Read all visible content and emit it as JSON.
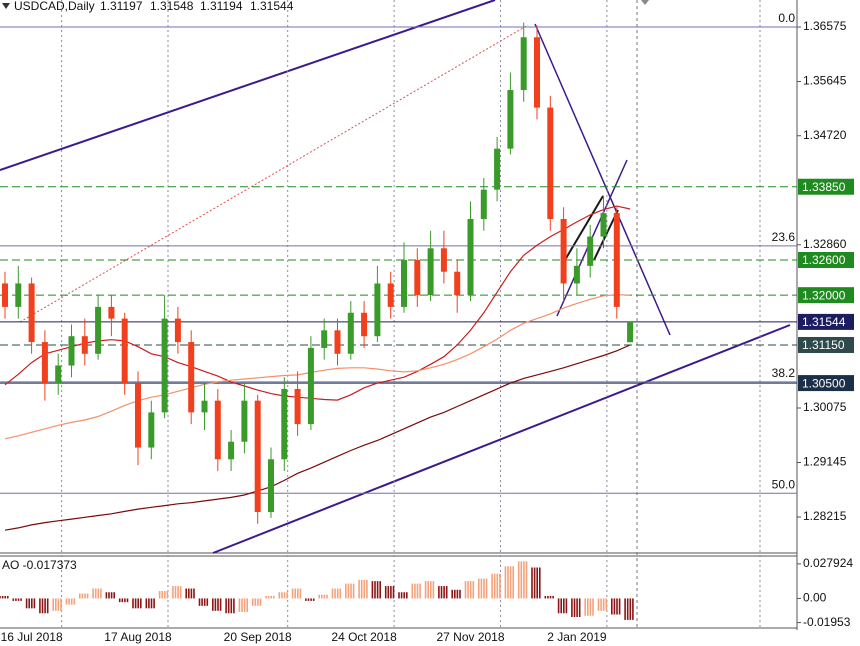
{
  "chart_data": {
    "type": "candlestick",
    "title": "USDCAD,Daily",
    "categories": [
      null,
      null,
      "16 Jul 2018",
      null,
      null,
      null,
      null,
      null,
      null,
      null,
      "17 Aug 2018",
      null,
      null,
      null,
      null,
      null,
      null,
      null,
      null,
      "20 Sep 2018",
      null,
      null,
      null,
      null,
      null,
      null,
      null,
      "24 Oct 2018",
      null,
      null,
      null,
      null,
      null,
      null,
      null,
      "27 Nov 2018",
      null,
      null,
      null,
      null,
      null,
      null,
      null,
      "2 Jan 2019",
      null,
      null,
      null,
      null
    ],
    "candles": [
      [
        1.322,
        1.324,
        1.316,
        1.318
      ],
      [
        1.318,
        1.325,
        1.316,
        1.322
      ],
      [
        1.322,
        1.323,
        1.31,
        1.312
      ],
      [
        1.312,
        1.314,
        1.302,
        1.305
      ],
      [
        1.305,
        1.31,
        1.303,
        1.308
      ],
      [
        1.308,
        1.315,
        1.306,
        1.313
      ],
      [
        1.313,
        1.316,
        1.308,
        1.31
      ],
      [
        1.31,
        1.32,
        1.309,
        1.318
      ],
      [
        1.318,
        1.32,
        1.313,
        1.316
      ],
      [
        1.316,
        1.317,
        1.303,
        1.305
      ],
      [
        1.305,
        1.307,
        1.291,
        1.294
      ],
      [
        1.294,
        1.302,
        1.292,
        1.3
      ],
      [
        1.3,
        1.32,
        1.299,
        1.316
      ],
      [
        1.316,
        1.318,
        1.31,
        1.312
      ],
      [
        1.312,
        1.314,
        1.298,
        1.3
      ],
      [
        1.3,
        1.305,
        1.297,
        1.302
      ],
      [
        1.302,
        1.304,
        1.29,
        1.292
      ],
      [
        1.292,
        1.297,
        1.29,
        1.295
      ],
      [
        1.295,
        1.305,
        1.293,
        1.302
      ],
      [
        1.302,
        1.303,
        1.281,
        1.283
      ],
      [
        1.283,
        1.294,
        1.282,
        1.292
      ],
      [
        1.292,
        1.306,
        1.29,
        1.304
      ],
      [
        1.304,
        1.307,
        1.296,
        1.298
      ],
      [
        1.298,
        1.313,
        1.297,
        1.311
      ],
      [
        1.311,
        1.316,
        1.309,
        1.314
      ],
      [
        1.314,
        1.316,
        1.308,
        1.31
      ],
      [
        1.31,
        1.319,
        1.309,
        1.317
      ],
      [
        1.317,
        1.319,
        1.311,
        1.313
      ],
      [
        1.313,
        1.325,
        1.312,
        1.322
      ],
      [
        1.322,
        1.324,
        1.316,
        1.318
      ],
      [
        1.318,
        1.329,
        1.317,
        1.326
      ],
      [
        1.326,
        1.328,
        1.318,
        1.32
      ],
      [
        1.32,
        1.331,
        1.319,
        1.328
      ],
      [
        1.328,
        1.331,
        1.322,
        1.324
      ],
      [
        1.324,
        1.326,
        1.317,
        1.32
      ],
      [
        1.32,
        1.336,
        1.319,
        1.333
      ],
      [
        1.333,
        1.34,
        1.331,
        1.338
      ],
      [
        1.338,
        1.347,
        1.336,
        1.345
      ],
      [
        1.345,
        1.358,
        1.344,
        1.355
      ],
      [
        1.355,
        1.3665,
        1.353,
        1.364
      ],
      [
        1.364,
        1.366,
        1.35,
        1.352
      ],
      [
        1.352,
        1.354,
        1.331,
        1.333
      ],
      [
        1.333,
        1.335,
        1.319,
        1.322
      ],
      [
        1.322,
        1.328,
        1.32,
        1.325
      ],
      [
        1.325,
        1.332,
        1.323,
        1.33
      ],
      [
        1.33,
        1.337,
        1.328,
        1.334
      ],
      [
        1.334,
        1.335,
        1.316,
        1.318
      ],
      [
        1.31197,
        1.31548,
        1.31194,
        1.31544
      ]
    ],
    "up_color": "#3a9a2a",
    "down_color": "#f0401e",
    "ylim": [
      1.27601,
      1.37036
    ],
    "yticks": [
      1.36575,
      1.35645,
      {
        "value": 1.3472,
        "label": "1.34720"
      },
      {
        "value": 1.3286,
        "label": "1.32860"
      },
      1.30075,
      1.29145,
      1.28215
    ],
    "series": [
      {
        "color": "#c81e1e",
        "values": [
          1.3047,
          1.3065,
          1.3085,
          1.31,
          1.3106,
          1.3112,
          1.3118,
          1.3122,
          1.3124,
          1.3122,
          1.3112,
          1.31,
          1.3095,
          1.3085,
          1.3078,
          1.307,
          1.3062,
          1.3052,
          1.3045,
          1.3038,
          1.3032,
          1.3028,
          1.3026,
          1.3024,
          1.3022,
          1.3021,
          1.303,
          1.3042,
          1.305,
          1.3055,
          1.306,
          1.307,
          1.3082,
          1.3095,
          1.3115,
          1.314,
          1.317,
          1.3205,
          1.324,
          1.3268,
          1.3285,
          1.33,
          1.3312,
          1.3325,
          1.3337,
          1.3346,
          1.3352,
          1.3347
        ]
      },
      {
        "color": "#f4906a",
        "values": [
          1.2955,
          1.296,
          1.2966,
          1.2972,
          1.2978,
          1.2983,
          1.2987,
          1.2993,
          1.3002,
          1.3012,
          1.302,
          1.3026,
          1.303,
          1.3036,
          1.3042,
          1.3048,
          1.3052,
          1.3055,
          1.3057,
          1.3059,
          1.3061,
          1.3063,
          1.3064,
          1.3068,
          1.3072,
          1.3075,
          1.3076,
          1.3076,
          1.3074,
          1.3071,
          1.3069,
          1.3071,
          1.3076,
          1.3082,
          1.309,
          1.31,
          1.3112,
          1.3125,
          1.314,
          1.3152,
          1.316,
          1.3168,
          1.3178,
          1.3186,
          1.3193,
          1.3199,
          1.3201,
          1.32
        ]
      },
      {
        "color": "#7a0a0a",
        "values": [
          1.2799,
          1.2803,
          1.2808,
          1.2812,
          1.2815,
          1.2818,
          1.2821,
          1.2824,
          1.2827,
          1.2831,
          1.2835,
          1.2838,
          1.2841,
          1.2844,
          1.2846,
          1.2849,
          1.2852,
          1.2855,
          1.2859,
          1.2866,
          1.2873,
          1.2884,
          1.2896,
          1.2905,
          1.2915,
          1.2925,
          1.2935,
          1.2944,
          1.2952,
          1.2962,
          1.2972,
          1.2982,
          1.2992,
          1.3,
          1.301,
          1.302,
          1.303,
          1.304,
          1.305,
          1.3058,
          1.3064,
          1.307,
          1.3076,
          1.3083,
          1.309,
          1.3097,
          1.3105,
          1.3115
        ]
      }
    ],
    "levels": [
      {
        "value": 1.3385,
        "label": "1.33850",
        "color": "#1f8a1f",
        "style": "dashed"
      },
      {
        "value": 1.326,
        "label": "1.32600",
        "color": "#1f8a1f",
        "style": "dashed"
      },
      {
        "value": 1.32,
        "label": "1.32000",
        "color": "#1f8a1f",
        "style": "dashed"
      },
      {
        "value": 1.31544,
        "label": "1.31544",
        "color": "#1c1c60",
        "style": "solid"
      },
      {
        "value": 1.3115,
        "label": "1.31150",
        "color": "#2e4a4a",
        "style": "dashed"
      },
      {
        "value": 1.305,
        "label": "1.30500",
        "color": "#1c2f48",
        "style": "solid"
      }
    ],
    "fib_levels": [
      {
        "label": "0.0",
        "value": 1.36575
      },
      {
        "label": "23.6",
        "value": 1.3284
      },
      {
        "label": "38.2",
        "value": 1.3052
      },
      {
        "label": "50.0",
        "value": 1.2862
      }
    ],
    "indicator": {
      "title": "AO -0.017373",
      "ylim": [
        -0.0239,
        0.0343
      ],
      "yticks": [
        0.027924,
        {
          "value": 0,
          "label": "0.00"
        },
        -0.01953
      ],
      "up_color": "#f4a27a",
      "down_color": "#8b1414",
      "values": [
        0.002,
        -0.002,
        -0.008,
        -0.012,
        -0.01,
        -0.005,
        0.004,
        0.008,
        0.005,
        -0.003,
        -0.008,
        -0.008,
        0.006,
        0.01,
        0.008,
        -0.006,
        -0.01,
        -0.012,
        -0.011,
        -0.006,
        0.002,
        0.005,
        0.008,
        -0.002,
        0.003,
        0.008,
        0.012,
        0.015,
        0.014,
        0.01,
        0.005,
        0.012,
        0.014,
        0.01,
        0.007,
        0.014,
        0.016,
        0.02,
        0.026,
        0.03,
        0.025,
        0.002,
        -0.012,
        -0.015,
        -0.014,
        -0.01,
        -0.013,
        -0.017373
      ]
    },
    "grid": true
  }
}
